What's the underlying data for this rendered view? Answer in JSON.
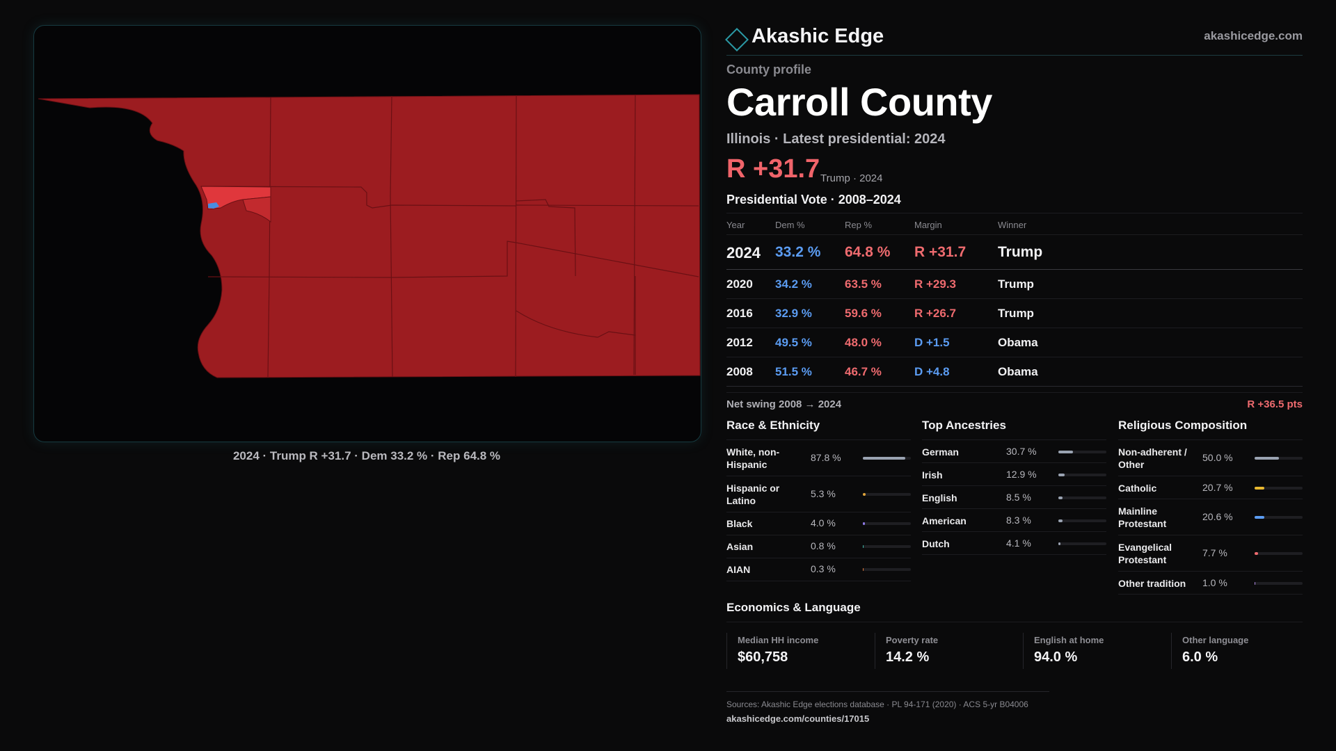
{
  "brand": {
    "name": "Akashic Edge",
    "url": "akashicedge.com"
  },
  "colors": {
    "rep": "#ef6b6f",
    "dem": "#5b9cf2",
    "map_rep": "#9c1c20",
    "accent": "#2b9aa6"
  },
  "map": {
    "caption": "2024 · Trump R +31.7 · Dem 33.2 % · Rep 64.8 %",
    "year": 2024,
    "winner": "Trump",
    "margin": "R +31.7"
  },
  "profile": {
    "eyebrow": "County profile",
    "title": "Carroll County",
    "subtitle": "Illinois · Latest presidential: 2024",
    "headline_margin": "R +31.7",
    "headline_note": "Trump · 2024"
  },
  "vote": {
    "title": "Presidential Vote · 2008–2024",
    "headers": {
      "year": "Year",
      "dem": "Dem %",
      "rep": "Rep %",
      "margin": "Margin",
      "winner": "Winner"
    },
    "rows": [
      {
        "year": "2024",
        "dem": "33.2 %",
        "rep": "64.8 %",
        "margin": "R +31.7",
        "winner": "Trump"
      },
      {
        "year": "2020",
        "dem": "34.2 %",
        "rep": "63.5 %",
        "margin": "R +29.3",
        "winner": "Trump"
      },
      {
        "year": "2016",
        "dem": "32.9 %",
        "rep": "59.6 %",
        "margin": "R +26.7",
        "winner": "Trump"
      },
      {
        "year": "2012",
        "dem": "49.5 %",
        "rep": "48.0 %",
        "margin": "D +1.5",
        "winner": "Obama"
      },
      {
        "year": "2008",
        "dem": "51.5 %",
        "rep": "46.7 %",
        "margin": "D +4.8",
        "winner": "Obama"
      }
    ],
    "swing_label": "Net swing 2008 → 2024",
    "swing_value": "R +36.5 pts"
  },
  "race": {
    "title": "Race & Ethnicity",
    "items": [
      {
        "label": "White, non-Hispanic",
        "value": "87.8 %",
        "pct": 87.8,
        "color": "#9aa3b2"
      },
      {
        "label": "Hispanic or Latino",
        "value": "5.3 %",
        "pct": 5.3,
        "color": "#e0a43a"
      },
      {
        "label": "Black",
        "value": "4.0 %",
        "pct": 4.0,
        "color": "#8e7ae6"
      },
      {
        "label": "Asian",
        "value": "0.8 %",
        "pct": 0.8,
        "color": "#3fb9a8"
      },
      {
        "label": "AIAN",
        "value": "0.3 %",
        "pct": 0.3,
        "color": "#e07a3a"
      }
    ]
  },
  "ancestry": {
    "title": "Top Ancestries",
    "items": [
      {
        "label": "German",
        "value": "30.7 %",
        "pct": 30.7,
        "color": "#9aa3b2"
      },
      {
        "label": "Irish",
        "value": "12.9 %",
        "pct": 12.9,
        "color": "#9aa3b2"
      },
      {
        "label": "English",
        "value": "8.5 %",
        "pct": 8.5,
        "color": "#9aa3b2"
      },
      {
        "label": "American",
        "value": "8.3 %",
        "pct": 8.3,
        "color": "#9aa3b2"
      },
      {
        "label": "Dutch",
        "value": "4.1 %",
        "pct": 4.1,
        "color": "#9aa3b2"
      }
    ]
  },
  "religion": {
    "title": "Religious Composition",
    "items": [
      {
        "label": "Non-adherent / Other",
        "value": "50.0 %",
        "pct": 50.0,
        "color": "#9aa3b2"
      },
      {
        "label": "Catholic",
        "value": "20.7 %",
        "pct": 20.7,
        "color": "#e8b830"
      },
      {
        "label": "Mainline Protestant",
        "value": "20.6 %",
        "pct": 20.6,
        "color": "#5b9cf2"
      },
      {
        "label": "Evangelical Protestant",
        "value": "7.7 %",
        "pct": 7.7,
        "color": "#ef6b6f"
      },
      {
        "label": "Other tradition",
        "value": "1.0 %",
        "pct": 1.0,
        "color": "#b08ae6"
      }
    ]
  },
  "economics": {
    "title": "Economics & Language",
    "items": [
      {
        "label": "Median HH income",
        "value": "$60,758"
      },
      {
        "label": "Poverty rate",
        "value": "14.2 %"
      },
      {
        "label": "English at home",
        "value": "94.0 %"
      },
      {
        "label": "Other language",
        "value": "6.0 %"
      }
    ]
  },
  "sources": {
    "text": "Sources: Akashic Edge elections database · PL 94-171 (2020) · ACS 5-yr B04006",
    "url": "akashicedge.com/counties/17015"
  }
}
